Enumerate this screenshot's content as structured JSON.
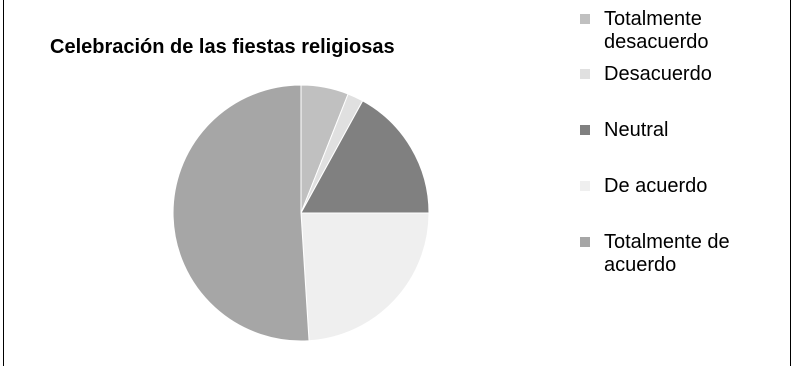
{
  "chart_data": {
    "type": "pie",
    "title": "Celebración de las fiestas religiosas",
    "legend_position": "right",
    "slices": [
      {
        "label": "Totalmente desacuerdo",
        "value": 6,
        "color": "#c0c0c0"
      },
      {
        "label": "Desacuerdo",
        "value": 2,
        "color": "#e0e0e0"
      },
      {
        "label": "Neutral",
        "value": 17,
        "color": "#808080"
      },
      {
        "label": "De acuerdo",
        "value": 24,
        "color": "#efefef"
      },
      {
        "label": "Totalmente de acuerdo",
        "value": 51,
        "color": "#a6a6a6"
      }
    ]
  }
}
